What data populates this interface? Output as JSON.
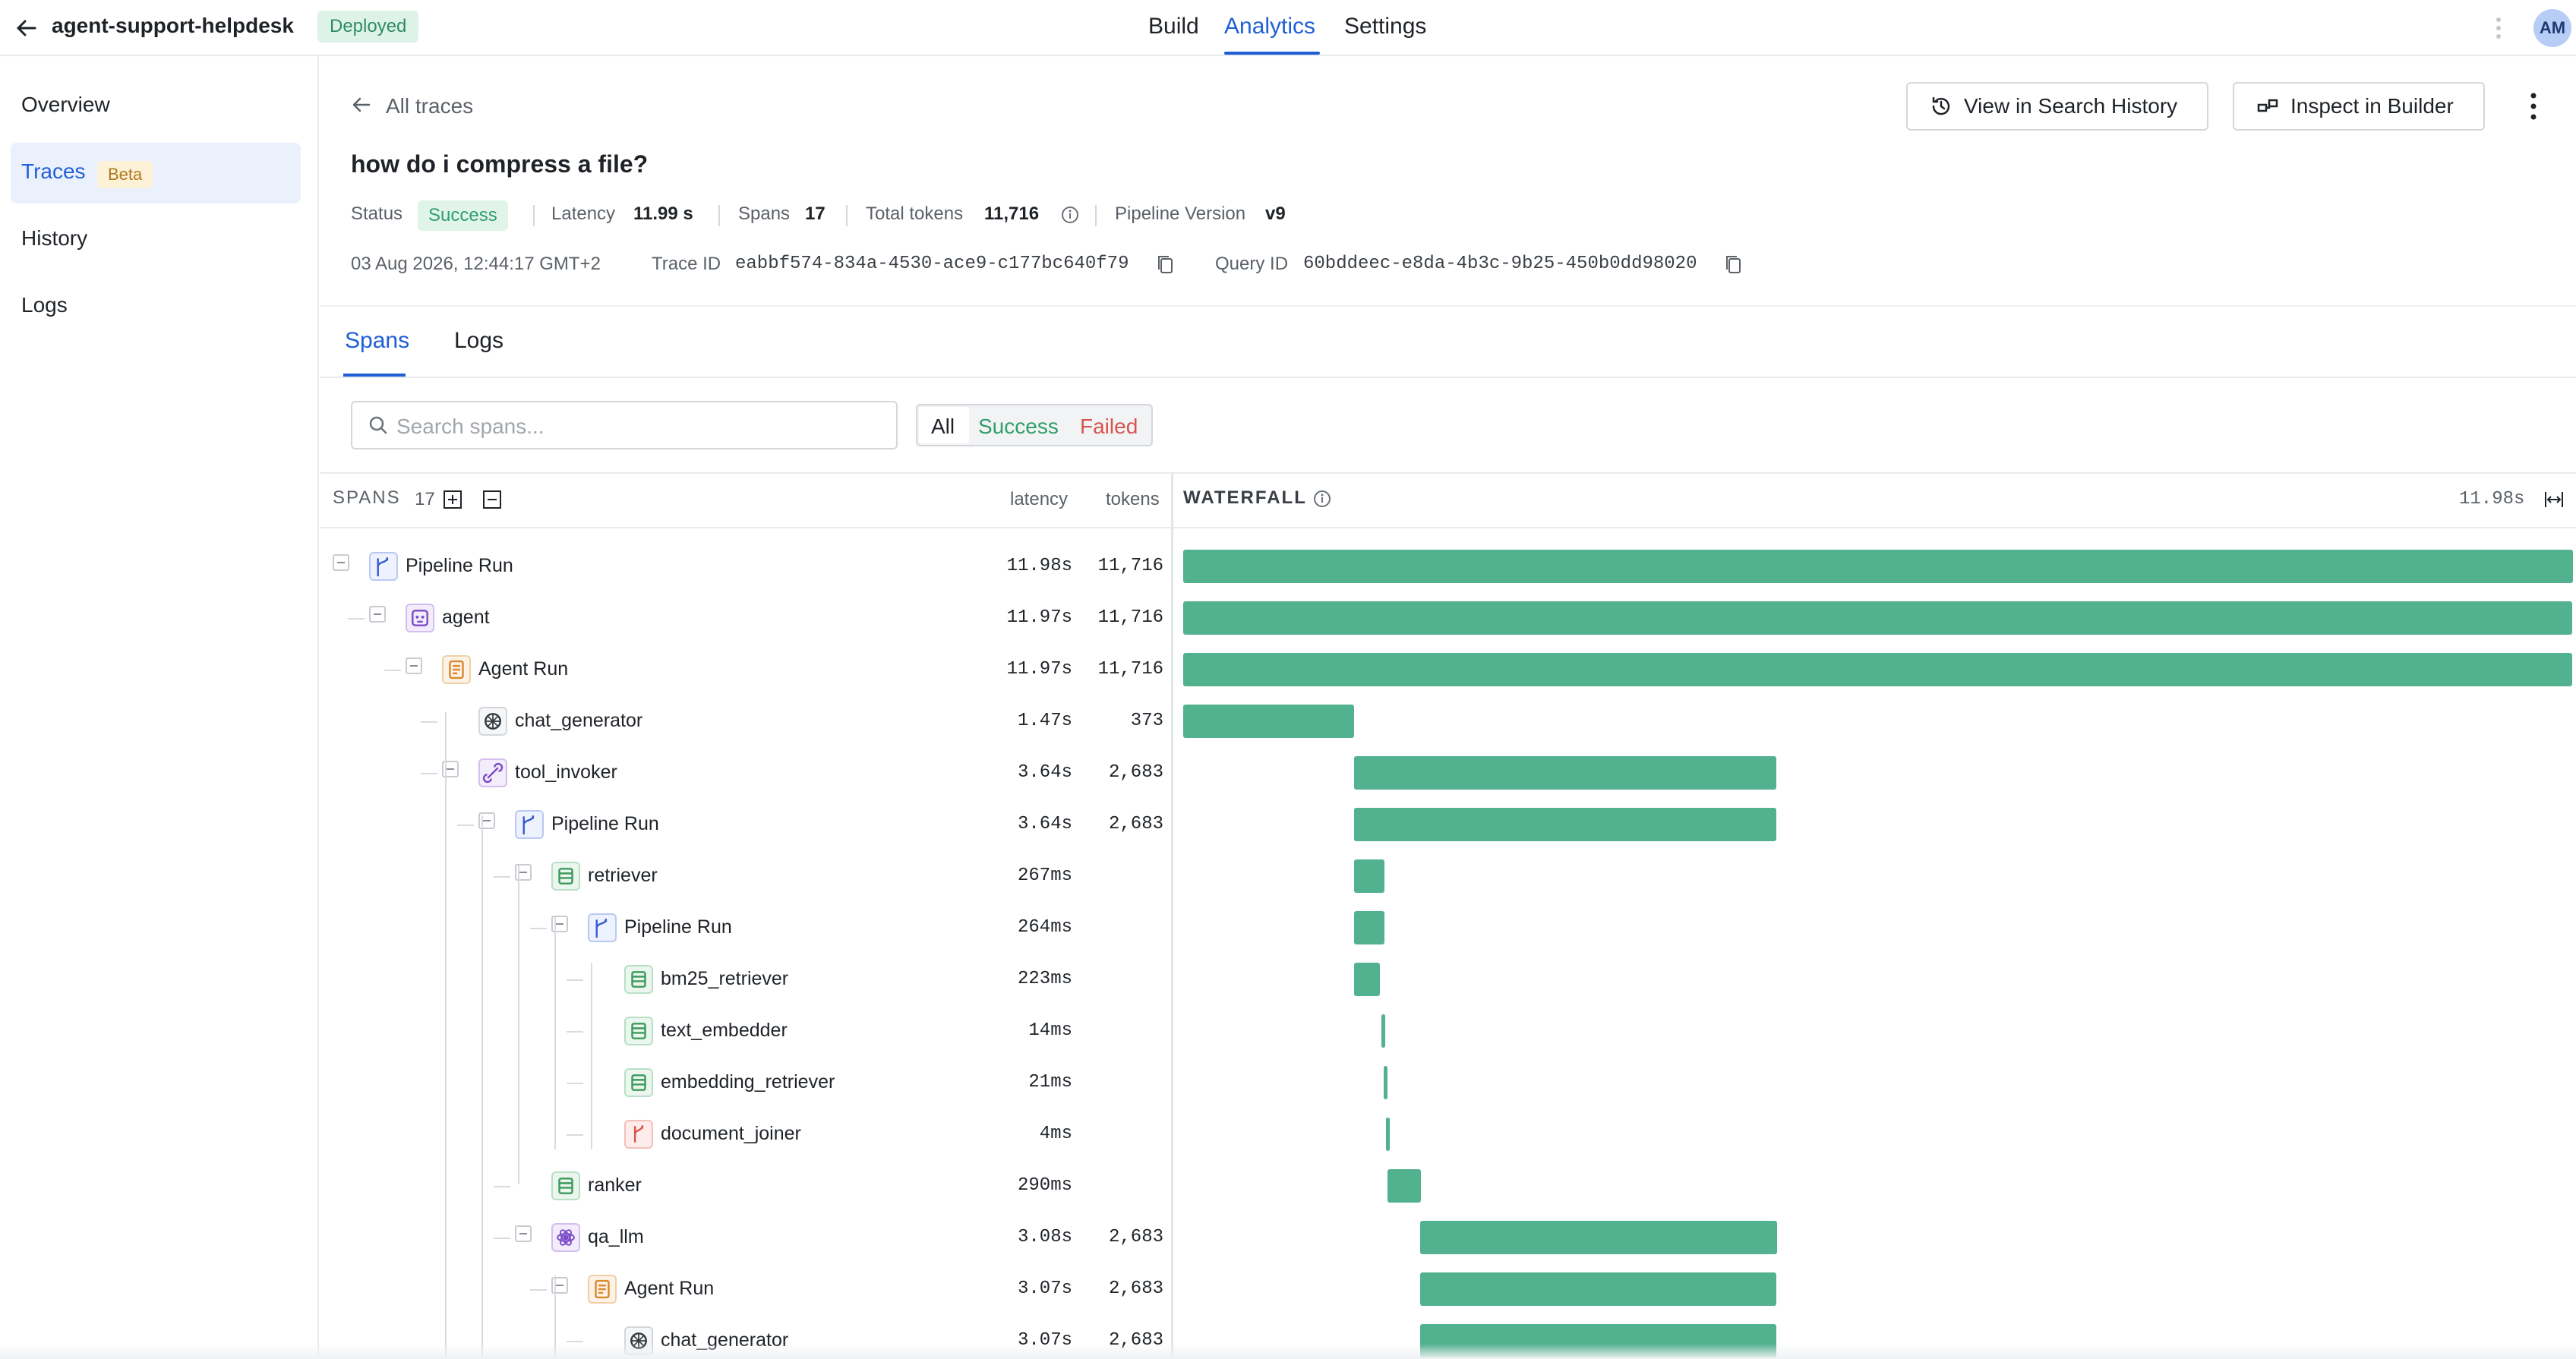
{
  "app": {
    "name": "agent-support-helpdesk",
    "status": "Deployed"
  },
  "nav": {
    "build": "Build",
    "analytics": "Analytics",
    "settings": "Settings"
  },
  "user": {
    "initials": "AM"
  },
  "sidebar": {
    "overview": "Overview",
    "traces": "Traces",
    "traces_badge": "Beta",
    "history": "History",
    "logs": "Logs"
  },
  "header": {
    "back_label": "All traces",
    "view_history": "View in Search History",
    "inspect_builder": "Inspect in Builder",
    "query": "how do i compress a file?",
    "status_label": "Status",
    "status_value": "Success",
    "latency_label": "Latency",
    "latency_value": "11.99 s",
    "spans_label": "Spans",
    "spans_value": "17",
    "tokens_label": "Total tokens",
    "tokens_value": "11,716",
    "version_label": "Pipeline Version",
    "version_value": "v9",
    "timestamp": "03 Aug 2026, 12:44:17 GMT+2",
    "trace_id_label": "Trace ID",
    "trace_id": "eabbf574-834a-4530-ace9-c177bc640f79",
    "query_id_label": "Query ID",
    "query_id": "60bddeec-e8da-4b3c-9b25-450b0dd98020"
  },
  "tabs": {
    "spans": "Spans",
    "logs": "Logs"
  },
  "search": {
    "placeholder": "Search spans..."
  },
  "filters": {
    "all": "All",
    "success": "Success",
    "failed": "Failed"
  },
  "table": {
    "spans_header": "SPANS",
    "spans_count": "17",
    "latency_header": "latency",
    "tokens_header": "tokens",
    "waterfall_header": "WATERFALL",
    "waterfall_total": "11.98s"
  },
  "colors": {
    "accent": "#1f5fd6",
    "bar": "#52b18e",
    "success": "#2f9e6a",
    "failed": "#d9534f"
  },
  "spans": [
    {
      "name": "Pipeline Run",
      "latency": "11.98s",
      "tokens": "11,716",
      "icon": "pipeline-icon"
    },
    {
      "name": "agent",
      "latency": "11.97s",
      "tokens": "11,716",
      "icon": "agent-icon"
    },
    {
      "name": "Agent Run",
      "latency": "11.97s",
      "tokens": "11,716",
      "icon": "agent-run-icon"
    },
    {
      "name": "chat_generator",
      "latency": "1.47s",
      "tokens": "373",
      "icon": "openai-icon"
    },
    {
      "name": "tool_invoker",
      "latency": "3.64s",
      "tokens": "2,683",
      "icon": "tool-icon"
    },
    {
      "name": "Pipeline Run",
      "latency": "3.64s",
      "tokens": "2,683",
      "icon": "pipeline-icon"
    },
    {
      "name": "retriever",
      "latency": "267ms",
      "tokens": "",
      "icon": "component-icon"
    },
    {
      "name": "Pipeline Run",
      "latency": "264ms",
      "tokens": "",
      "icon": "pipeline-icon"
    },
    {
      "name": "bm25_retriever",
      "latency": "223ms",
      "tokens": "",
      "icon": "component-icon"
    },
    {
      "name": "text_embedder",
      "latency": "14ms",
      "tokens": "",
      "icon": "component-icon"
    },
    {
      "name": "embedding_retriever",
      "latency": "21ms",
      "tokens": "",
      "icon": "component-icon"
    },
    {
      "name": "document_joiner",
      "latency": "4ms",
      "tokens": "",
      "icon": "joiner-icon"
    },
    {
      "name": "ranker",
      "latency": "290ms",
      "tokens": "",
      "icon": "component-icon"
    },
    {
      "name": "qa_llm",
      "latency": "3.08s",
      "tokens": "2,683",
      "icon": "llm-icon"
    },
    {
      "name": "Agent Run",
      "latency": "3.07s",
      "tokens": "2,683",
      "icon": "agent-run-icon"
    },
    {
      "name": "chat_generator",
      "latency": "3.07s",
      "tokens": "2,683",
      "icon": "openai-icon"
    }
  ]
}
